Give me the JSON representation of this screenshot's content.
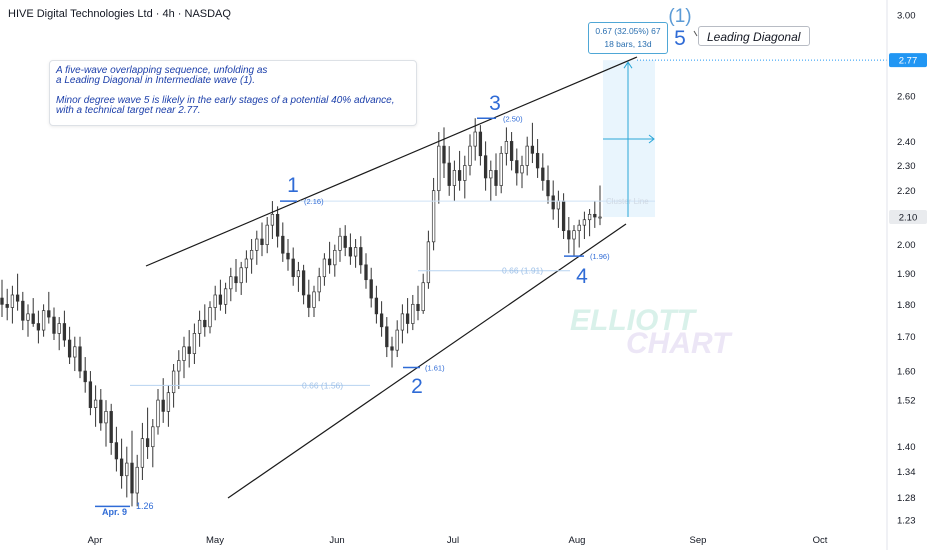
{
  "title": "HIVE Digital Technologies Ltd · 4h · NASDAQ",
  "note": {
    "line1": "A five-wave overlapping sequence, unfolding as\n a Leading Diagonal in Intermediate wave (1).",
    "line2": "Minor degree wave 5 is likely in the early stages of a potential 40% advance,\n with a technical target near 2.77."
  },
  "callout": "Leading Diagonal",
  "measure": {
    "line1": "0.67 (32.05%) 67",
    "line2": "18 bars, 13d"
  },
  "watermark": {
    "line1": "ELLIOTT",
    "line2": "CHART"
  },
  "colors": {
    "wave": "#2f6bd6",
    "candle": "#2b2b2b",
    "target": "#2196f3",
    "fib": "#9fc1e8"
  },
  "chart_data": {
    "type": "candlestick",
    "title": "HIVE Digital Technologies Ltd · 4h · NASDAQ",
    "y_scale": "log",
    "ylim": [
      1.21,
      3.12
    ],
    "y_ticks": [
      "3.00",
      "2.60",
      "2.40",
      "2.30",
      "2.20",
      "2.00",
      "1.90",
      "1.80",
      "1.70",
      "1.60",
      "1.52",
      "1.40",
      "1.34",
      "1.28",
      "1.23"
    ],
    "x_ticks": [
      "Apr",
      "May",
      "Jun",
      "Jul",
      "Aug",
      "Sep",
      "Oct"
    ],
    "current_price": "2.10",
    "target_price": "2.77",
    "wave_labels": [
      {
        "label": "1",
        "price": 2.16,
        "price_label": "(2.16)"
      },
      {
        "label": "2",
        "price": 1.61,
        "price_label": "(1.61)"
      },
      {
        "label": "3",
        "price": 2.5,
        "price_label": "(2.50)"
      },
      {
        "label": "4",
        "price": 1.96,
        "price_label": "(1.96)"
      },
      {
        "label": "5",
        "price": 2.77
      },
      {
        "label": "(1)"
      }
    ],
    "low_marker": {
      "date_label": "Apr. 9",
      "price": 1.26,
      "price_label": "1.26"
    },
    "fib_levels": [
      {
        "label": "0.66 (1.56)",
        "price": 1.56
      },
      {
        "label": "0.66 (1.91)",
        "price": 1.91
      },
      {
        "label": "Cluster Line",
        "price": 2.16
      }
    ],
    "ohlc": [
      {
        "o": 1.82,
        "h": 1.88,
        "l": 1.76,
        "c": 1.8
      },
      {
        "o": 1.8,
        "h": 1.85,
        "l": 1.75,
        "c": 1.79
      },
      {
        "o": 1.79,
        "h": 1.86,
        "l": 1.74,
        "c": 1.83
      },
      {
        "o": 1.83,
        "h": 1.9,
        "l": 1.78,
        "c": 1.81
      },
      {
        "o": 1.81,
        "h": 1.84,
        "l": 1.72,
        "c": 1.75
      },
      {
        "o": 1.75,
        "h": 1.8,
        "l": 1.7,
        "c": 1.77
      },
      {
        "o": 1.77,
        "h": 1.82,
        "l": 1.73,
        "c": 1.74
      },
      {
        "o": 1.74,
        "h": 1.78,
        "l": 1.68,
        "c": 1.72
      },
      {
        "o": 1.72,
        "h": 1.8,
        "l": 1.7,
        "c": 1.78
      },
      {
        "o": 1.78,
        "h": 1.84,
        "l": 1.74,
        "c": 1.76
      },
      {
        "o": 1.76,
        "h": 1.79,
        "l": 1.69,
        "c": 1.71
      },
      {
        "o": 1.71,
        "h": 1.76,
        "l": 1.66,
        "c": 1.74
      },
      {
        "o": 1.74,
        "h": 1.78,
        "l": 1.67,
        "c": 1.69
      },
      {
        "o": 1.69,
        "h": 1.73,
        "l": 1.62,
        "c": 1.64
      },
      {
        "o": 1.64,
        "h": 1.7,
        "l": 1.6,
        "c": 1.67
      },
      {
        "o": 1.67,
        "h": 1.7,
        "l": 1.58,
        "c": 1.6
      },
      {
        "o": 1.6,
        "h": 1.64,
        "l": 1.54,
        "c": 1.57
      },
      {
        "o": 1.57,
        "h": 1.6,
        "l": 1.48,
        "c": 1.5
      },
      {
        "o": 1.5,
        "h": 1.56,
        "l": 1.45,
        "c": 1.52
      },
      {
        "o": 1.52,
        "h": 1.55,
        "l": 1.44,
        "c": 1.46
      },
      {
        "o": 1.46,
        "h": 1.52,
        "l": 1.4,
        "c": 1.49
      },
      {
        "o": 1.49,
        "h": 1.51,
        "l": 1.38,
        "c": 1.41
      },
      {
        "o": 1.41,
        "h": 1.45,
        "l": 1.34,
        "c": 1.37
      },
      {
        "o": 1.37,
        "h": 1.42,
        "l": 1.3,
        "c": 1.33
      },
      {
        "o": 1.33,
        "h": 1.4,
        "l": 1.28,
        "c": 1.36
      },
      {
        "o": 1.36,
        "h": 1.44,
        "l": 1.26,
        "c": 1.29
      },
      {
        "o": 1.29,
        "h": 1.38,
        "l": 1.26,
        "c": 1.35
      },
      {
        "o": 1.35,
        "h": 1.46,
        "l": 1.32,
        "c": 1.42
      },
      {
        "o": 1.42,
        "h": 1.5,
        "l": 1.37,
        "c": 1.4
      },
      {
        "o": 1.4,
        "h": 1.47,
        "l": 1.35,
        "c": 1.45
      },
      {
        "o": 1.45,
        "h": 1.55,
        "l": 1.43,
        "c": 1.52
      },
      {
        "o": 1.52,
        "h": 1.58,
        "l": 1.46,
        "c": 1.49
      },
      {
        "o": 1.49,
        "h": 1.56,
        "l": 1.45,
        "c": 1.54
      },
      {
        "o": 1.54,
        "h": 1.62,
        "l": 1.5,
        "c": 1.6
      },
      {
        "o": 1.6,
        "h": 1.66,
        "l": 1.55,
        "c": 1.63
      },
      {
        "o": 1.63,
        "h": 1.7,
        "l": 1.58,
        "c": 1.67
      },
      {
        "o": 1.67,
        "h": 1.72,
        "l": 1.61,
        "c": 1.65
      },
      {
        "o": 1.65,
        "h": 1.74,
        "l": 1.62,
        "c": 1.71
      },
      {
        "o": 1.71,
        "h": 1.78,
        "l": 1.67,
        "c": 1.75
      },
      {
        "o": 1.75,
        "h": 1.8,
        "l": 1.7,
        "c": 1.73
      },
      {
        "o": 1.73,
        "h": 1.81,
        "l": 1.71,
        "c": 1.79
      },
      {
        "o": 1.79,
        "h": 1.86,
        "l": 1.75,
        "c": 1.83
      },
      {
        "o": 1.83,
        "h": 1.88,
        "l": 1.78,
        "c": 1.8
      },
      {
        "o": 1.8,
        "h": 1.87,
        "l": 1.77,
        "c": 1.85
      },
      {
        "o": 1.85,
        "h": 1.92,
        "l": 1.81,
        "c": 1.89
      },
      {
        "o": 1.89,
        "h": 1.95,
        "l": 1.84,
        "c": 1.87
      },
      {
        "o": 1.87,
        "h": 1.94,
        "l": 1.83,
        "c": 1.92
      },
      {
        "o": 1.92,
        "h": 1.98,
        "l": 1.87,
        "c": 1.95
      },
      {
        "o": 1.95,
        "h": 2.02,
        "l": 1.9,
        "c": 1.98
      },
      {
        "o": 1.98,
        "h": 2.05,
        "l": 1.93,
        "c": 2.02
      },
      {
        "o": 2.02,
        "h": 2.08,
        "l": 1.96,
        "c": 2.0
      },
      {
        "o": 2.0,
        "h": 2.1,
        "l": 1.97,
        "c": 2.07
      },
      {
        "o": 2.07,
        "h": 2.16,
        "l": 2.02,
        "c": 2.11
      },
      {
        "o": 2.11,
        "h": 2.14,
        "l": 1.99,
        "c": 2.03
      },
      {
        "o": 2.03,
        "h": 2.08,
        "l": 1.94,
        "c": 1.97
      },
      {
        "o": 1.97,
        "h": 2.02,
        "l": 1.91,
        "c": 1.95
      },
      {
        "o": 1.95,
        "h": 1.99,
        "l": 1.86,
        "c": 1.89
      },
      {
        "o": 1.89,
        "h": 1.94,
        "l": 1.84,
        "c": 1.91
      },
      {
        "o": 1.91,
        "h": 1.93,
        "l": 1.8,
        "c": 1.83
      },
      {
        "o": 1.83,
        "h": 1.88,
        "l": 1.76,
        "c": 1.79
      },
      {
        "o": 1.79,
        "h": 1.86,
        "l": 1.76,
        "c": 1.84
      },
      {
        "o": 1.84,
        "h": 1.92,
        "l": 1.81,
        "c": 1.89
      },
      {
        "o": 1.89,
        "h": 1.97,
        "l": 1.86,
        "c": 1.95
      },
      {
        "o": 1.95,
        "h": 2.01,
        "l": 1.9,
        "c": 1.93
      },
      {
        "o": 1.93,
        "h": 2.0,
        "l": 1.89,
        "c": 1.98
      },
      {
        "o": 1.98,
        "h": 2.06,
        "l": 1.94,
        "c": 2.03
      },
      {
        "o": 2.03,
        "h": 2.07,
        "l": 1.96,
        "c": 1.99
      },
      {
        "o": 1.99,
        "h": 2.04,
        "l": 1.93,
        "c": 1.96
      },
      {
        "o": 1.96,
        "h": 2.02,
        "l": 1.92,
        "c": 1.99
      },
      {
        "o": 1.99,
        "h": 2.03,
        "l": 1.9,
        "c": 1.93
      },
      {
        "o": 1.93,
        "h": 1.97,
        "l": 1.85,
        "c": 1.88
      },
      {
        "o": 1.88,
        "h": 1.92,
        "l": 1.79,
        "c": 1.82
      },
      {
        "o": 1.82,
        "h": 1.86,
        "l": 1.74,
        "c": 1.77
      },
      {
        "o": 1.77,
        "h": 1.81,
        "l": 1.7,
        "c": 1.73
      },
      {
        "o": 1.73,
        "h": 1.76,
        "l": 1.64,
        "c": 1.67
      },
      {
        "o": 1.67,
        "h": 1.7,
        "l": 1.61,
        "c": 1.66
      },
      {
        "o": 1.66,
        "h": 1.75,
        "l": 1.64,
        "c": 1.72
      },
      {
        "o": 1.72,
        "h": 1.8,
        "l": 1.68,
        "c": 1.77
      },
      {
        "o": 1.77,
        "h": 1.82,
        "l": 1.71,
        "c": 1.74
      },
      {
        "o": 1.74,
        "h": 1.83,
        "l": 1.72,
        "c": 1.8
      },
      {
        "o": 1.8,
        "h": 1.86,
        "l": 1.75,
        "c": 1.78
      },
      {
        "o": 1.78,
        "h": 1.9,
        "l": 1.77,
        "c": 1.87
      },
      {
        "o": 1.87,
        "h": 2.05,
        "l": 1.85,
        "c": 2.01
      },
      {
        "o": 2.01,
        "h": 2.25,
        "l": 1.98,
        "c": 2.2
      },
      {
        "o": 2.2,
        "h": 2.44,
        "l": 2.15,
        "c": 2.38
      },
      {
        "o": 2.38,
        "h": 2.46,
        "l": 2.25,
        "c": 2.31
      },
      {
        "o": 2.31,
        "h": 2.38,
        "l": 2.18,
        "c": 2.22
      },
      {
        "o": 2.22,
        "h": 2.32,
        "l": 2.16,
        "c": 2.28
      },
      {
        "o": 2.28,
        "h": 2.36,
        "l": 2.2,
        "c": 2.24
      },
      {
        "o": 2.24,
        "h": 2.34,
        "l": 2.17,
        "c": 2.3
      },
      {
        "o": 2.3,
        "h": 2.43,
        "l": 2.26,
        "c": 2.38
      },
      {
        "o": 2.38,
        "h": 2.5,
        "l": 2.32,
        "c": 2.44
      },
      {
        "o": 2.44,
        "h": 2.47,
        "l": 2.3,
        "c": 2.34
      },
      {
        "o": 2.34,
        "h": 2.4,
        "l": 2.2,
        "c": 2.25
      },
      {
        "o": 2.25,
        "h": 2.32,
        "l": 2.16,
        "c": 2.28
      },
      {
        "o": 2.28,
        "h": 2.35,
        "l": 2.18,
        "c": 2.22
      },
      {
        "o": 2.22,
        "h": 2.38,
        "l": 2.19,
        "c": 2.35
      },
      {
        "o": 2.35,
        "h": 2.46,
        "l": 2.3,
        "c": 2.4
      },
      {
        "o": 2.4,
        "h": 2.44,
        "l": 2.28,
        "c": 2.32
      },
      {
        "o": 2.32,
        "h": 2.37,
        "l": 2.22,
        "c": 2.27
      },
      {
        "o": 2.27,
        "h": 2.34,
        "l": 2.21,
        "c": 2.3
      },
      {
        "o": 2.3,
        "h": 2.42,
        "l": 2.26,
        "c": 2.38
      },
      {
        "o": 2.38,
        "h": 2.48,
        "l": 2.31,
        "c": 2.35
      },
      {
        "o": 2.35,
        "h": 2.41,
        "l": 2.25,
        "c": 2.29
      },
      {
        "o": 2.29,
        "h": 2.35,
        "l": 2.2,
        "c": 2.24
      },
      {
        "o": 2.24,
        "h": 2.3,
        "l": 2.15,
        "c": 2.18
      },
      {
        "o": 2.18,
        "h": 2.24,
        "l": 2.09,
        "c": 2.13
      },
      {
        "o": 2.13,
        "h": 2.2,
        "l": 2.06,
        "c": 2.16
      },
      {
        "o": 2.16,
        "h": 2.19,
        "l": 2.02,
        "c": 2.05
      },
      {
        "o": 2.05,
        "h": 2.1,
        "l": 1.97,
        "c": 2.02
      },
      {
        "o": 2.02,
        "h": 2.07,
        "l": 1.96,
        "c": 2.05
      },
      {
        "o": 2.05,
        "h": 2.09,
        "l": 1.99,
        "c": 2.07
      },
      {
        "o": 2.07,
        "h": 2.12,
        "l": 2.02,
        "c": 2.09
      },
      {
        "o": 2.09,
        "h": 2.13,
        "l": 2.03,
        "c": 2.11
      },
      {
        "o": 2.11,
        "h": 2.16,
        "l": 2.06,
        "c": 2.1
      },
      {
        "o": 2.1,
        "h": 2.22,
        "l": 2.07,
        "c": 2.1
      }
    ]
  }
}
